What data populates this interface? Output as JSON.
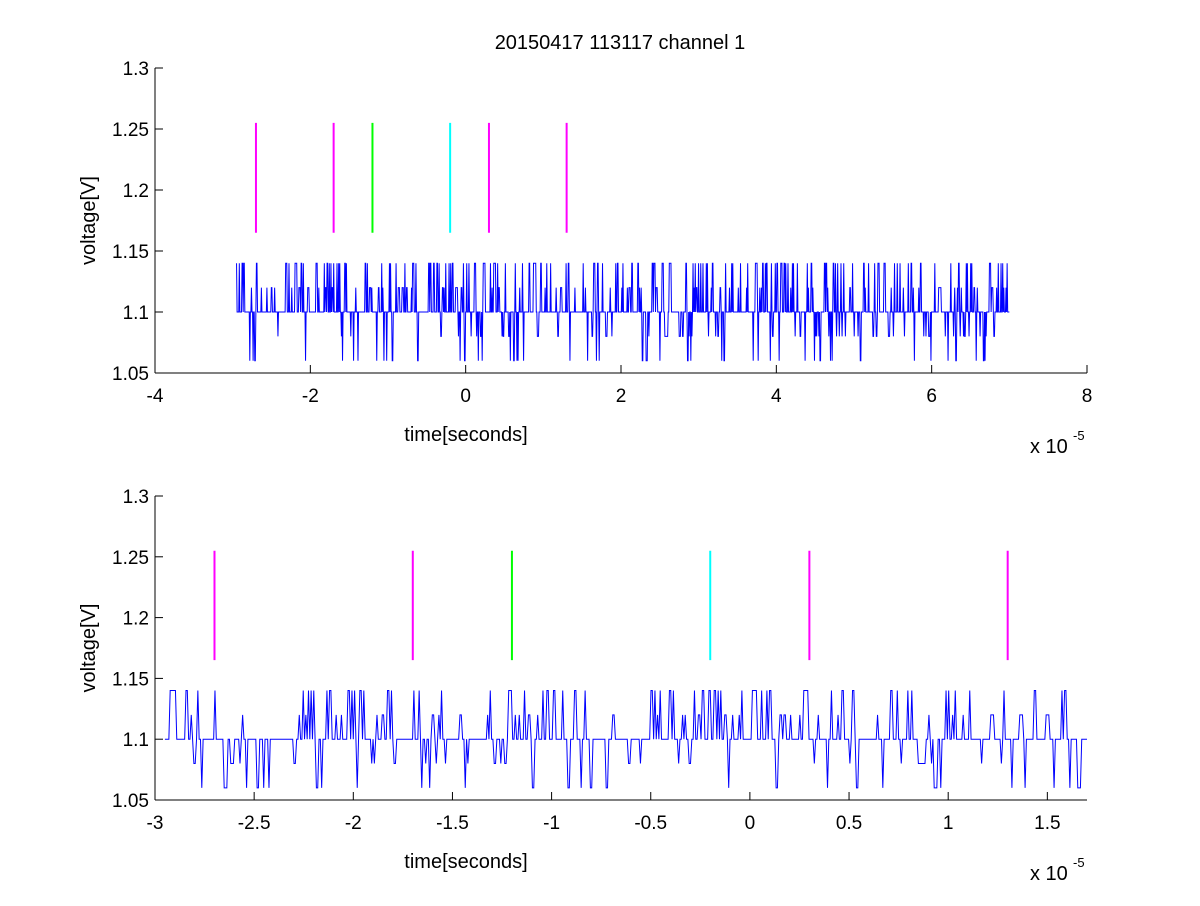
{
  "figure_title": "20150417 113117 channel 1",
  "colors": {
    "background": "#ffffff",
    "axes": "#000000",
    "trace": "#0000ff",
    "marker_magenta": "#ff00ff",
    "marker_green": "#00ff00",
    "marker_cyan": "#00ffff"
  },
  "chart_data": [
    {
      "type": "line",
      "title": "20150417 113117 channel 1",
      "xlabel": "time[seconds]",
      "ylabel": "voltage[V]",
      "x_multiplier": {
        "base": "x 10",
        "exponent": "-5"
      },
      "xlim": [
        -4,
        8
      ],
      "ylim": [
        1.05,
        1.3
      ],
      "xticks": [
        -4,
        -2,
        0,
        2,
        4,
        6,
        8
      ],
      "xtick_labels": [
        "-4",
        "-2",
        "0",
        "2",
        "4",
        "6",
        "8"
      ],
      "yticks": [
        1.05,
        1.1,
        1.15,
        1.2,
        1.25,
        1.3
      ],
      "ytick_labels": [
        "1.05",
        "1.1",
        "1.15",
        "1.2",
        "1.25",
        "1.3"
      ],
      "grid": false,
      "box": false,
      "series": [
        {
          "kind": "noise_trace",
          "color": "#0000ff",
          "x_range": [
            -2.95,
            7.0
          ],
          "levels": [
            1.06,
            1.08,
            1.1,
            1.12,
            1.14
          ],
          "baseline": 1.1,
          "approx_points": 1400
        }
      ],
      "markers": [
        {
          "x": -2.7,
          "y": [
            1.165,
            1.255
          ],
          "color": "#ff00ff"
        },
        {
          "x": -1.7,
          "y": [
            1.165,
            1.255
          ],
          "color": "#ff00ff"
        },
        {
          "x": -1.2,
          "y": [
            1.165,
            1.255
          ],
          "color": "#00ff00"
        },
        {
          "x": -0.2,
          "y": [
            1.165,
            1.255
          ],
          "color": "#00ffff"
        },
        {
          "x": 0.3,
          "y": [
            1.165,
            1.255
          ],
          "color": "#ff00ff"
        },
        {
          "x": 1.3,
          "y": [
            1.165,
            1.255
          ],
          "color": "#ff00ff"
        }
      ]
    },
    {
      "type": "line",
      "title": "",
      "xlabel": "time[seconds]",
      "ylabel": "voltage[V]",
      "x_multiplier": {
        "base": "x 10",
        "exponent": "-5"
      },
      "xlim": [
        -3.0,
        1.7
      ],
      "ylim": [
        1.05,
        1.3
      ],
      "xticks": [
        -3,
        -2.5,
        -2,
        -1.5,
        -1,
        -0.5,
        0,
        0.5,
        1,
        1.5
      ],
      "xtick_labels": [
        "-3",
        "-2.5",
        "-2",
        "-1.5",
        "-1",
        "-0.5",
        "0",
        "0.5",
        "1",
        "1.5"
      ],
      "yticks": [
        1.05,
        1.1,
        1.15,
        1.2,
        1.25,
        1.3
      ],
      "ytick_labels": [
        "1.05",
        "1.1",
        "1.15",
        "1.2",
        "1.25",
        "1.3"
      ],
      "grid": false,
      "box": false,
      "series": [
        {
          "kind": "noise_trace",
          "color": "#0000ff",
          "x_range": [
            -2.95,
            1.7
          ],
          "levels": [
            1.06,
            1.08,
            1.1,
            1.12,
            1.14
          ],
          "baseline": 1.1,
          "approx_points": 700
        }
      ],
      "markers": [
        {
          "x": -2.7,
          "y": [
            1.165,
            1.255
          ],
          "color": "#ff00ff"
        },
        {
          "x": -1.7,
          "y": [
            1.165,
            1.255
          ],
          "color": "#ff00ff"
        },
        {
          "x": -1.2,
          "y": [
            1.165,
            1.255
          ],
          "color": "#00ff00"
        },
        {
          "x": -0.2,
          "y": [
            1.165,
            1.255
          ],
          "color": "#00ffff"
        },
        {
          "x": 0.3,
          "y": [
            1.165,
            1.255
          ],
          "color": "#ff00ff"
        },
        {
          "x": 1.3,
          "y": [
            1.165,
            1.255
          ],
          "color": "#ff00ff"
        }
      ]
    }
  ]
}
